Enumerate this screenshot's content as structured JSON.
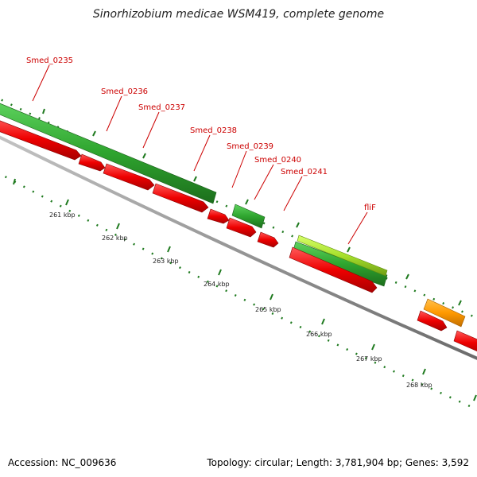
{
  "title": "Sinorhizobium medicae WSM419, complete genome",
  "footer": {
    "accession_label": "Accession:",
    "accession": "NC_009636",
    "stats": "Topology: circular; Length: 3,781,904 bp; Genes: 3,592"
  },
  "colors": {
    "cds": "#ee0000",
    "gene": "#2fa52f",
    "highlight_gene": "#a6e02c",
    "other_gene": "#ff9900",
    "label": "#cc0000",
    "backbone": "#8a8a8a",
    "ticks": "#1f7a1f"
  },
  "genes": [
    {
      "label": "Smed_0235"
    },
    {
      "label": "Smed_0236"
    },
    {
      "label": "Smed_0237"
    },
    {
      "label": "Smed_0238"
    },
    {
      "label": "Smed_0239"
    },
    {
      "label": "Smed_0240"
    },
    {
      "label": "Smed_0241"
    },
    {
      "label": "fliF"
    }
  ],
  "scale": [
    {
      "label": "261 kbp"
    },
    {
      "label": "262 kbp"
    },
    {
      "label": "263 kbp"
    },
    {
      "label": "264 kbp"
    },
    {
      "label": "265 kbp"
    },
    {
      "label": "266 kbp"
    },
    {
      "label": "267 kbp"
    },
    {
      "label": "268 kbp"
    }
  ]
}
